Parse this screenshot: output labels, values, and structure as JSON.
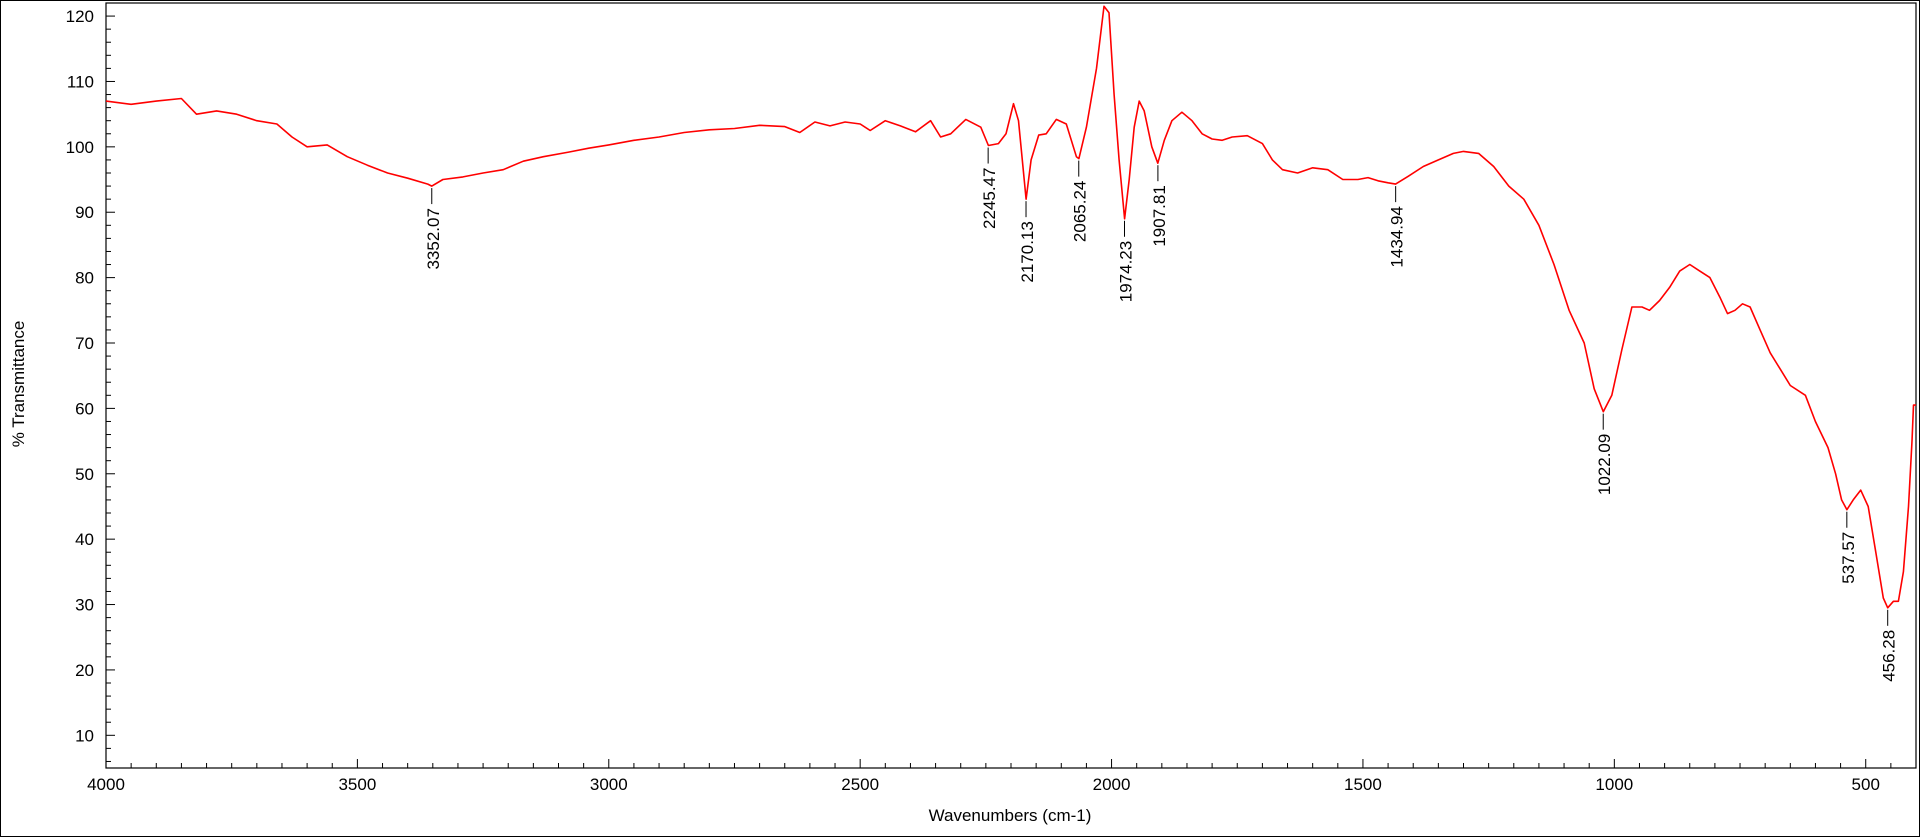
{
  "chart_data": {
    "type": "line",
    "title": "",
    "xlabel": "Wavenumbers (cm-1)",
    "ylabel": "% Transmittance",
    "xlim": [
      4000,
      400
    ],
    "ylim": [
      5,
      122
    ],
    "x_ticks": [
      4000,
      3500,
      3000,
      2500,
      2000,
      1500,
      1000,
      500
    ],
    "x_tick_labels": [
      "4000",
      "3500",
      "3000",
      "2500",
      "2000",
      "1500",
      "1000",
      "500"
    ],
    "y_ticks": [
      10,
      20,
      30,
      40,
      50,
      60,
      70,
      80,
      90,
      100,
      110,
      120
    ],
    "y_tick_labels": [
      "10",
      "20",
      "30",
      "40",
      "50",
      "60",
      "70",
      "80",
      "90",
      "100",
      "110",
      "120"
    ],
    "grid": false,
    "series": [
      {
        "color": "#ff0000",
        "points": [
          [
            4000,
            107
          ],
          [
            3950,
            106.5
          ],
          [
            3900,
            107
          ],
          [
            3850,
            107.4
          ],
          [
            3820,
            105
          ],
          [
            3780,
            105.5
          ],
          [
            3740,
            105
          ],
          [
            3700,
            104
          ],
          [
            3660,
            103.5
          ],
          [
            3630,
            101.5
          ],
          [
            3600,
            100
          ],
          [
            3560,
            100.3
          ],
          [
            3520,
            98.5
          ],
          [
            3480,
            97.2
          ],
          [
            3440,
            96
          ],
          [
            3400,
            95.2
          ],
          [
            3360,
            94.3
          ],
          [
            3352,
            94
          ],
          [
            3330,
            95
          ],
          [
            3290,
            95.4
          ],
          [
            3250,
            96
          ],
          [
            3210,
            96.5
          ],
          [
            3170,
            97.8
          ],
          [
            3130,
            98.5
          ],
          [
            3080,
            99.2
          ],
          [
            3040,
            99.8
          ],
          [
            3000,
            100.3
          ],
          [
            2950,
            101
          ],
          [
            2900,
            101.5
          ],
          [
            2850,
            102.2
          ],
          [
            2800,
            102.6
          ],
          [
            2750,
            102.8
          ],
          [
            2700,
            103.3
          ],
          [
            2650,
            103.1
          ],
          [
            2620,
            102.2
          ],
          [
            2590,
            103.8
          ],
          [
            2560,
            103.2
          ],
          [
            2530,
            103.8
          ],
          [
            2500,
            103.5
          ],
          [
            2480,
            102.5
          ],
          [
            2450,
            104
          ],
          [
            2420,
            103.2
          ],
          [
            2390,
            102.3
          ],
          [
            2360,
            104
          ],
          [
            2340,
            101.5
          ],
          [
            2320,
            102
          ],
          [
            2290,
            104.2
          ],
          [
            2260,
            103
          ],
          [
            2245,
            100.2
          ],
          [
            2225,
            100.5
          ],
          [
            2210,
            102
          ],
          [
            2195,
            106.6
          ],
          [
            2185,
            104
          ],
          [
            2170,
            92
          ],
          [
            2160,
            98
          ],
          [
            2145,
            101.8
          ],
          [
            2130,
            102
          ],
          [
            2110,
            104.2
          ],
          [
            2090,
            103.5
          ],
          [
            2070,
            98.5
          ],
          [
            2065,
            98.2
          ],
          [
            2050,
            103
          ],
          [
            2030,
            112
          ],
          [
            2015,
            121.5
          ],
          [
            2005,
            120.5
          ],
          [
            1995,
            108
          ],
          [
            1985,
            98
          ],
          [
            1974,
            89
          ],
          [
            1965,
            95
          ],
          [
            1955,
            103
          ],
          [
            1945,
            107
          ],
          [
            1935,
            105.5
          ],
          [
            1920,
            100
          ],
          [
            1908,
            97.5
          ],
          [
            1895,
            101
          ],
          [
            1880,
            104
          ],
          [
            1860,
            105.3
          ],
          [
            1840,
            104
          ],
          [
            1820,
            102
          ],
          [
            1800,
            101.2
          ],
          [
            1780,
            101
          ],
          [
            1760,
            101.5
          ],
          [
            1730,
            101.7
          ],
          [
            1700,
            100.5
          ],
          [
            1680,
            98
          ],
          [
            1660,
            96.5
          ],
          [
            1630,
            96
          ],
          [
            1600,
            96.8
          ],
          [
            1570,
            96.5
          ],
          [
            1540,
            95
          ],
          [
            1510,
            95
          ],
          [
            1490,
            95.3
          ],
          [
            1470,
            94.8
          ],
          [
            1450,
            94.5
          ],
          [
            1435,
            94.3
          ],
          [
            1410,
            95.5
          ],
          [
            1380,
            97
          ],
          [
            1350,
            98
          ],
          [
            1320,
            99
          ],
          [
            1300,
            99.3
          ],
          [
            1270,
            99
          ],
          [
            1240,
            97
          ],
          [
            1210,
            94
          ],
          [
            1180,
            92
          ],
          [
            1150,
            88
          ],
          [
            1120,
            82
          ],
          [
            1090,
            75
          ],
          [
            1060,
            70
          ],
          [
            1040,
            63
          ],
          [
            1022,
            59.5
          ],
          [
            1005,
            62
          ],
          [
            985,
            69
          ],
          [
            965,
            75.5
          ],
          [
            945,
            75.5
          ],
          [
            930,
            75
          ],
          [
            910,
            76.5
          ],
          [
            890,
            78.5
          ],
          [
            870,
            81
          ],
          [
            850,
            82
          ],
          [
            830,
            81
          ],
          [
            810,
            80
          ],
          [
            790,
            77
          ],
          [
            775,
            74.5
          ],
          [
            760,
            75
          ],
          [
            745,
            76
          ],
          [
            730,
            75.5
          ],
          [
            710,
            72
          ],
          [
            690,
            68.5
          ],
          [
            670,
            66
          ],
          [
            650,
            63.5
          ],
          [
            620,
            62
          ],
          [
            600,
            58
          ],
          [
            575,
            54
          ],
          [
            560,
            50
          ],
          [
            548,
            46
          ],
          [
            537.5,
            44.5
          ],
          [
            525,
            46
          ],
          [
            510,
            47.5
          ],
          [
            495,
            45
          ],
          [
            480,
            38
          ],
          [
            465,
            31
          ],
          [
            456.3,
            29.5
          ],
          [
            445,
            30.5
          ],
          [
            435,
            30.5
          ],
          [
            425,
            35
          ],
          [
            415,
            45
          ],
          [
            408,
            55
          ],
          [
            405,
            60.5
          ],
          [
            400,
            60.5
          ]
        ]
      }
    ],
    "peak_labels": [
      {
        "x": 3352.07,
        "y": 94,
        "label": "3352.07"
      },
      {
        "x": 2245.47,
        "y": 100.2,
        "label": "2245.47"
      },
      {
        "x": 2170.13,
        "y": 92,
        "label": "2170.13"
      },
      {
        "x": 2065.24,
        "y": 98.2,
        "label": "2065.24"
      },
      {
        "x": 1974.23,
        "y": 89,
        "label": "1974.23"
      },
      {
        "x": 1907.81,
        "y": 97.5,
        "label": "1907.81"
      },
      {
        "x": 1434.94,
        "y": 94.3,
        "label": "1434.94"
      },
      {
        "x": 1022.09,
        "y": 59.5,
        "label": "1022.09"
      },
      {
        "x": 537.57,
        "y": 44.5,
        "label": "537.57"
      },
      {
        "x": 456.28,
        "y": 29.5,
        "label": "456.28"
      }
    ]
  }
}
